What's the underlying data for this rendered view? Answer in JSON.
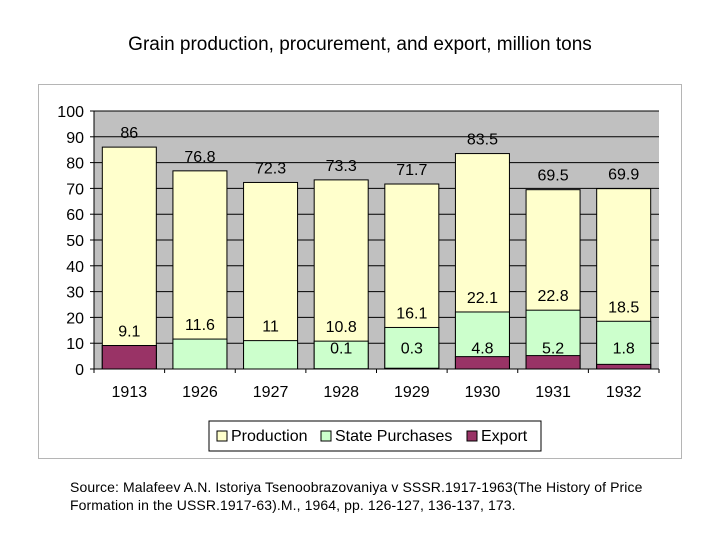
{
  "title": "Grain production, procurement, and export,  million tons",
  "source": "Source: Malafeev A.N. Istoriya Tsenoobrazovaniya v SSSR.1917-1963(The History of Price Formation in the USSR.1917-63).M., 1964, pp. 126-127, 136-137, 173.",
  "colors": {
    "production": "#ffffcc",
    "state_purchases": "#ccffcc",
    "export": "#993366",
    "plot_bg": "#c0c0c0",
    "bar_border": "#000000"
  },
  "chart_data": {
    "type": "bar",
    "layout": "overlaid",
    "title": "Grain production, procurement, and export,  million tons",
    "xlabel": "",
    "ylabel": "",
    "ylim": [
      0,
      100
    ],
    "yticks": [
      0,
      10,
      20,
      30,
      40,
      50,
      60,
      70,
      80,
      90,
      100
    ],
    "grid": true,
    "legend_position": "bottom",
    "categories": [
      "1913",
      "1926",
      "1927",
      "1928",
      "1929",
      "1930",
      "1931",
      "1932"
    ],
    "series": [
      {
        "name": "Production",
        "key": "production",
        "values": [
          86,
          76.8,
          72.3,
          73.3,
          71.7,
          83.5,
          69.5,
          69.9
        ],
        "labels": [
          "86",
          "76.8",
          "72.3",
          "73.3",
          "71.7",
          "83.5",
          "69.5",
          "69.9"
        ]
      },
      {
        "name": "State Purchases",
        "key": "state_purchases",
        "values": [
          9.1,
          11.6,
          11,
          10.8,
          16.1,
          22.1,
          22.8,
          18.5
        ],
        "labels": [
          "9.1",
          "11.6",
          "11",
          "10.8",
          "16.1",
          "22.1",
          "22.8",
          "18.5"
        ]
      },
      {
        "name": "Export",
        "key": "export",
        "values": [
          9.1,
          null,
          null,
          0.1,
          0.3,
          4.8,
          5.2,
          1.8
        ],
        "labels": [
          "",
          "",
          "",
          "0.1",
          "0.3",
          "4.8",
          "5.2",
          "1.8"
        ]
      }
    ]
  }
}
